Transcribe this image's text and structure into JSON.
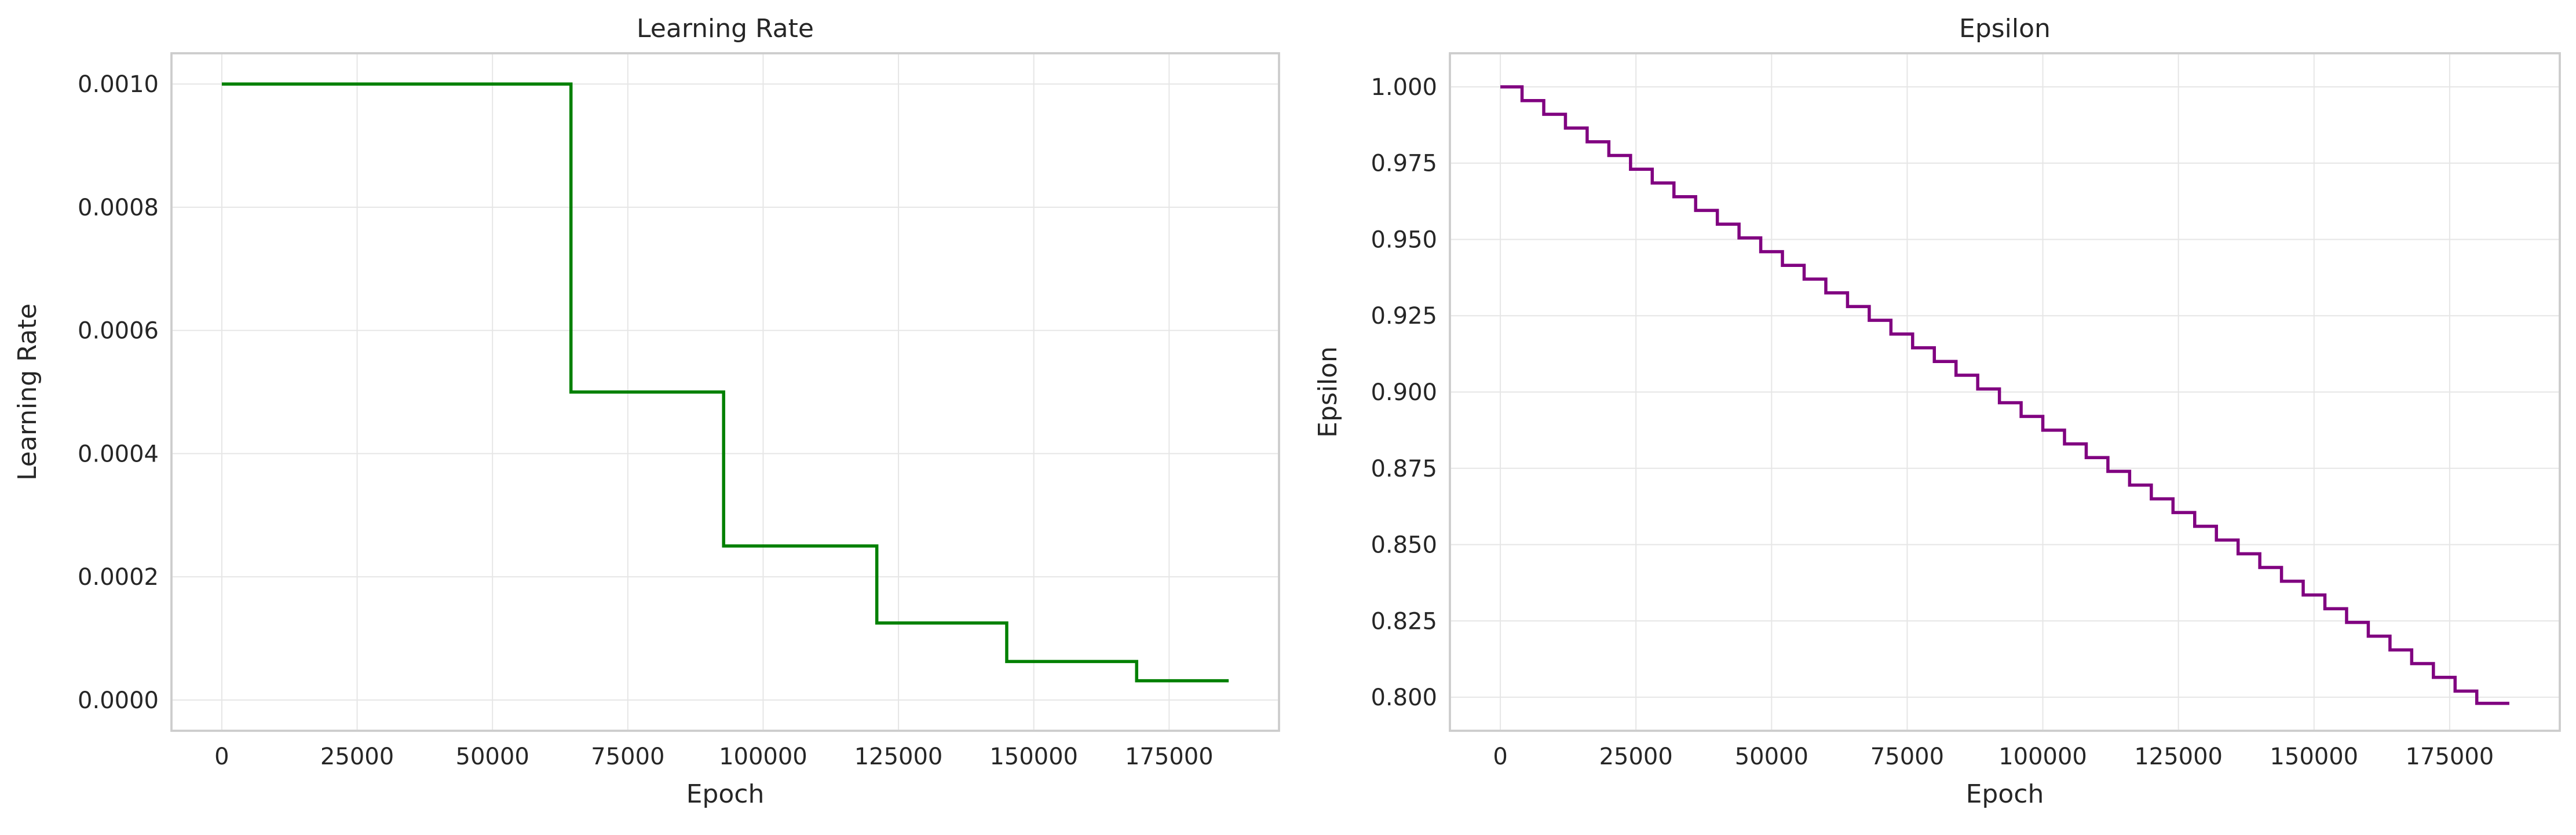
{
  "chart_data": [
    {
      "type": "line",
      "step": true,
      "title": "Learning Rate",
      "xlabel": "Epoch",
      "ylabel": "Learning Rate",
      "xlim": [
        -9300,
        195300
      ],
      "ylim": [
        -5e-05,
        0.00105
      ],
      "xticks": [
        0,
        25000,
        50000,
        75000,
        100000,
        125000,
        150000,
        175000
      ],
      "xtick_labels": [
        "0",
        "25000",
        "50000",
        "75000",
        "100000",
        "125000",
        "150000",
        "175000"
      ],
      "yticks": [
        0,
        0.0002,
        0.0004,
        0.0006,
        0.0008,
        0.001
      ],
      "ytick_labels": [
        "0.0000",
        "0.0002",
        "0.0004",
        "0.0006",
        "0.0008",
        "0.0010"
      ],
      "grid": true,
      "series": [
        {
          "color": "#008000",
          "x": [
            0,
            64500,
            64500,
            92700,
            92700,
            121000,
            121000,
            145000,
            145000,
            169000,
            169000,
            186000
          ],
          "y": [
            0.001,
            0.001,
            0.0005,
            0.0005,
            0.00025,
            0.00025,
            0.000125,
            0.000125,
            6.25e-05,
            6.25e-05,
            3.125e-05,
            3.125e-05
          ]
        }
      ]
    },
    {
      "type": "line",
      "step": true,
      "title": "Epsilon",
      "xlabel": "Epoch",
      "ylabel": "Epsilon",
      "xlim": [
        -9300,
        195300
      ],
      "ylim": [
        0.789,
        1.011
      ],
      "xticks": [
        0,
        25000,
        50000,
        75000,
        100000,
        125000,
        150000,
        175000
      ],
      "xtick_labels": [
        "0",
        "25000",
        "50000",
        "75000",
        "100000",
        "125000",
        "150000",
        "175000"
      ],
      "yticks": [
        0.8,
        0.825,
        0.85,
        0.875,
        0.9,
        0.925,
        0.95,
        0.975,
        1.0
      ],
      "ytick_labels": [
        "0.800",
        "0.825",
        "0.850",
        "0.875",
        "0.900",
        "0.925",
        "0.950",
        "0.975",
        "1.000"
      ],
      "grid": true,
      "series": [
        {
          "color": "#800080",
          "step_start": 0,
          "step_width": 4000,
          "y_start": 1.0,
          "y_decrement": 0.0045,
          "x_end": 186000,
          "y_end": 0.798
        }
      ]
    }
  ]
}
